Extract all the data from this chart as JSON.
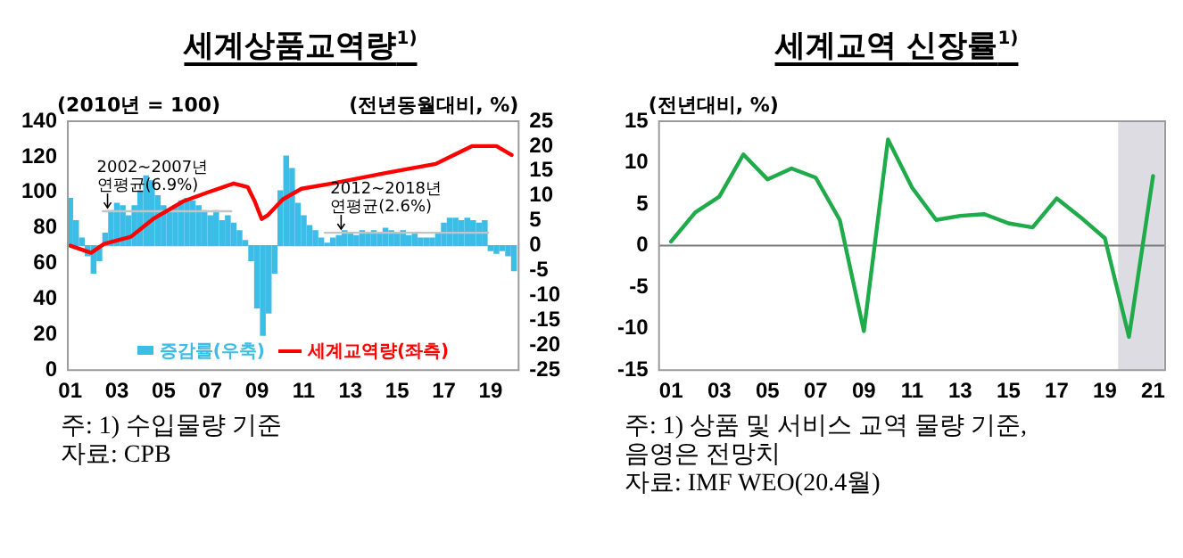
{
  "chart_data": [
    {
      "type": "bar",
      "title": "세계상품교역량$^{1)}$",
      "ylabel": "(2010년 = 100)",
      "y2label": "(전년동월대비, %)",
      "xlim": [
        2000.9,
        2020.2
      ],
      "xticks": [
        {
          "value": 2001,
          "label": "01"
        },
        {
          "value": 2003,
          "label": "03"
        },
        {
          "value": 2005,
          "label": "05"
        },
        {
          "value": 2007,
          "label": "07"
        },
        {
          "value": 2009,
          "label": "09"
        },
        {
          "value": 2011,
          "label": "11"
        },
        {
          "value": 2013,
          "label": "13"
        },
        {
          "value": 2015,
          "label": "15"
        },
        {
          "value": 2017,
          "label": "17"
        },
        {
          "value": 2019,
          "label": "19"
        }
      ],
      "ylim": [
        0,
        140
      ],
      "yticks": [
        0,
        20,
        40,
        60,
        80,
        100,
        120,
        140
      ],
      "y2lim": [
        -25,
        25
      ],
      "y2ticks": [
        -25,
        -20,
        -15,
        -10,
        -5,
        0,
        5,
        10,
        15,
        20,
        25
      ],
      "grid": false,
      "legend": "bottom",
      "marker": "none",
      "series": [
        {
          "type": "bar",
          "axis": "y2",
          "name": "증감률(우축)",
          "color": "#3cbde8",
          "x": [
            2001,
            2001.25,
            2001.5,
            2001.75,
            2002,
            2002.25,
            2002.5,
            2002.75,
            2003,
            2003.25,
            2003.5,
            2003.75,
            2004,
            2004.25,
            2004.5,
            2004.75,
            2005,
            2005.25,
            2005.5,
            2005.75,
            2006,
            2006.25,
            2006.5,
            2006.75,
            2007,
            2007.25,
            2007.5,
            2007.75,
            2008,
            2008.25,
            2008.5,
            2008.75,
            2009,
            2009.25,
            2009.5,
            2009.75,
            2010,
            2010.25,
            2010.5,
            2010.75,
            2011,
            2011.25,
            2011.5,
            2011.75,
            2012,
            2012.25,
            2012.5,
            2012.75,
            2013,
            2013.25,
            2013.5,
            2013.75,
            2014,
            2014.25,
            2014.5,
            2014.75,
            2015,
            2015.25,
            2015.5,
            2015.75,
            2016,
            2016.25,
            2016.5,
            2016.75,
            2017,
            2017.25,
            2017.5,
            2017.75,
            2018,
            2018.25,
            2018.5,
            2018.75,
            2019,
            2019.25,
            2019.5,
            2019.75,
            2020
          ],
          "values": [
            9.5,
            5,
            1.5,
            -2,
            -5.5,
            -3,
            2.5,
            7,
            8.5,
            8,
            6,
            8,
            11,
            14,
            13,
            10,
            8,
            7,
            8,
            9,
            9.5,
            9,
            8,
            7,
            6,
            7,
            5,
            6,
            4.5,
            3,
            1,
            -3,
            -12.5,
            -18,
            -13.5,
            -5.5,
            11,
            18,
            15.5,
            8.5,
            6,
            4,
            3,
            1.5,
            0.5,
            1.5,
            2,
            3,
            2.5,
            2,
            3,
            2.5,
            3,
            2.5,
            3.5,
            3,
            2.5,
            3,
            2,
            2.5,
            1.5,
            1.5,
            1.5,
            2.5,
            4.5,
            5.5,
            5.5,
            5,
            5.5,
            5,
            4.5,
            5,
            -1,
            -1.5,
            -1,
            -2,
            -5
          ]
        },
        {
          "type": "line",
          "axis": "y2",
          "color": "#c4c4c4",
          "x": [
            2002.4,
            2007.9
          ],
          "values": [
            6.9,
            6.9
          ]
        },
        {
          "type": "line",
          "axis": "y2",
          "color": "#c4c4c4",
          "x": [
            2011.9,
            2018.9
          ],
          "values": [
            2.6,
            2.6
          ]
        },
        {
          "type": "line",
          "name": "세계교역량(좌측)",
          "color": "#ff0000",
          "x": [
            2001.0,
            2001.9,
            2002.45,
            2003.6,
            2004.55,
            2005.85,
            2006.9,
            2008.0,
            2008.6,
            2008.9,
            2009.2,
            2009.45,
            2010.1,
            2010.9,
            2012.2,
            2014.55,
            2016.65,
            2018.2,
            2019.25,
            2019.9
          ],
          "values": [
            70,
            66,
            71,
            75,
            85,
            95,
            100,
            105,
            103,
            95,
            85,
            87,
            96,
            102,
            105,
            111,
            116,
            126,
            126,
            121
          ]
        }
      ],
      "annotations": [
        {
          "text": "2002~2007년\n연평균(6.9%)",
          "x": 2002.6,
          "y": 89.3
        },
        {
          "text": "2012~2018년\n연평균(2.6%)",
          "x": 2012.6,
          "y": 77.3
        },
        "주: 1) 수입물량 기준",
        "자료: CPB"
      ]
    },
    {
      "type": "line",
      "title": "세계교역 신장률$^{1)}$",
      "ylabel": "(전년대비, %)",
      "x": [
        2001,
        2002,
        2003,
        2004,
        2005,
        2006,
        2007,
        2008,
        2009,
        2010,
        2011,
        2012,
        2013,
        2014,
        2015,
        2016,
        2017,
        2018,
        2019,
        2020,
        2021
      ],
      "xlim": [
        2000.5,
        2021.5
      ],
      "xticks": [
        {
          "value": 2001,
          "label": "01"
        },
        {
          "value": 2003,
          "label": "03"
        },
        {
          "value": 2005,
          "label": "05"
        },
        {
          "value": 2007,
          "label": "07"
        },
        {
          "value": 2009,
          "label": "09"
        },
        {
          "value": 2011,
          "label": "11"
        },
        {
          "value": 2013,
          "label": "13"
        },
        {
          "value": 2015,
          "label": "15"
        },
        {
          "value": 2017,
          "label": "17"
        },
        {
          "value": 2019,
          "label": "19"
        },
        {
          "value": 2021,
          "label": "21"
        }
      ],
      "ylim": [
        -15,
        15
      ],
      "yticks": [
        -15,
        -10,
        -5,
        0,
        5,
        10,
        15
      ],
      "grid": false,
      "legend": false,
      "marker": "none",
      "series": [
        {
          "color": "#1fab4a",
          "values": [
            0.5,
            4,
            5.9,
            11,
            8,
            9.3,
            8.2,
            3.1,
            -10.3,
            12.8,
            7,
            3.1,
            3.6,
            3.8,
            2.7,
            2.2,
            5.7,
            3.4,
            0.9,
            -11,
            8.4
          ]
        }
      ],
      "bands": [
        {
          "axis": "x",
          "from": 2019.55,
          "to": 2021.45,
          "color": "#dcdce2"
        }
      ],
      "ref_lines": [
        {
          "axis": "y",
          "value": 0,
          "color": "#7a7a7a"
        }
      ],
      "annotations": [
        "주: 1) 상품 및 서비스 교역 물량 기준,\n음영은 전망치",
        "자료: IMF WEO(20.4월)"
      ]
    }
  ]
}
